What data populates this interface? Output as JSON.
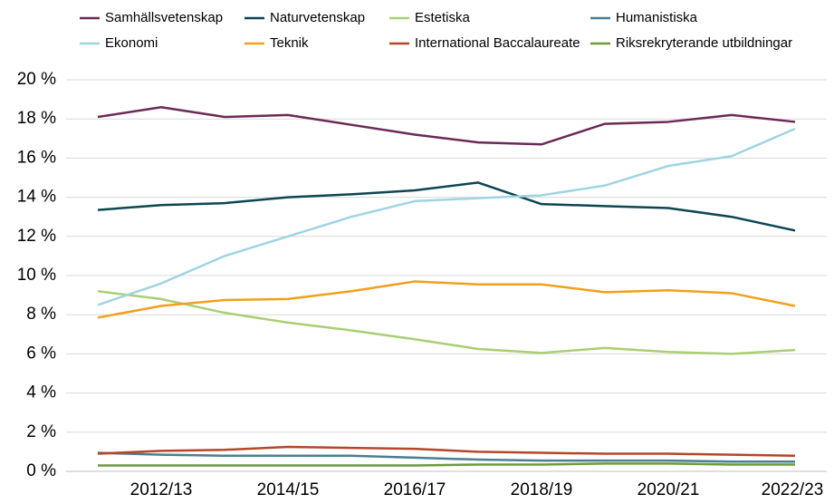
{
  "chart_data": {
    "type": "line",
    "categories": [
      null,
      "2012/13",
      null,
      "2014/15",
      null,
      "2016/17",
      null,
      "2018/19",
      null,
      "2020/21",
      null,
      "2022/23"
    ],
    "series": [
      {
        "name": "Samhällsvetenskap",
        "color": "#6b2a57",
        "values": [
          18.1,
          18.6,
          18.1,
          18.2,
          17.7,
          17.2,
          16.8,
          16.7,
          17.75,
          17.85,
          18.2,
          17.85
        ]
      },
      {
        "name": "Naturvetenskap",
        "color": "#0d4651",
        "values": [
          13.35,
          13.6,
          13.7,
          14.0,
          14.15,
          14.35,
          14.75,
          13.65,
          13.55,
          13.45,
          13.0,
          12.3
        ]
      },
      {
        "name": "Estetiska",
        "color": "#a9cf74",
        "values": [
          9.2,
          8.8,
          8.1,
          7.6,
          7.2,
          6.75,
          6.25,
          6.05,
          6.3,
          6.1,
          6.0,
          6.2
        ]
      },
      {
        "name": "Humanistiska",
        "color": "#4a7f92",
        "values": [
          0.95,
          0.85,
          0.8,
          0.8,
          0.8,
          0.7,
          0.6,
          0.55,
          0.55,
          0.55,
          0.5,
          0.5
        ]
      },
      {
        "name": "Ekonomi",
        "color": "#9fd4e2",
        "values": [
          8.5,
          9.6,
          11.0,
          12.0,
          13.0,
          13.8,
          13.95,
          14.1,
          14.6,
          15.6,
          16.1,
          17.5
        ]
      },
      {
        "name": "Teknik",
        "color": "#f0a01e",
        "values": [
          7.85,
          8.45,
          8.75,
          8.8,
          9.2,
          9.7,
          9.55,
          9.55,
          9.15,
          9.25,
          9.1,
          8.45
        ]
      },
      {
        "name": "International Baccalaureate",
        "color": "#b5462a",
        "values": [
          0.9,
          1.05,
          1.1,
          1.25,
          1.2,
          1.15,
          1.0,
          0.95,
          0.9,
          0.9,
          0.85,
          0.8
        ]
      },
      {
        "name": "Riksrekryterande utbildningar",
        "color": "#6e9a3a",
        "values": [
          0.3,
          0.3,
          0.3,
          0.3,
          0.3,
          0.3,
          0.35,
          0.35,
          0.4,
          0.4,
          0.35,
          0.35
        ]
      }
    ],
    "ylim": [
      0,
      20
    ],
    "yticks": [
      {
        "value": 0,
        "label": "0 %"
      },
      {
        "value": 2,
        "label": "2 %"
      },
      {
        "value": 4,
        "label": "4 %"
      },
      {
        "value": 6,
        "label": "6 %"
      },
      {
        "value": 8,
        "label": "8 %"
      },
      {
        "value": 10,
        "label": "10 %"
      },
      {
        "value": 12,
        "label": "12 %"
      },
      {
        "value": 14,
        "label": "14 %"
      },
      {
        "value": 16,
        "label": "16 %"
      },
      {
        "value": 18,
        "label": "18 %"
      },
      {
        "value": 20,
        "label": "20 %"
      }
    ],
    "grid": true,
    "legend": "top"
  }
}
